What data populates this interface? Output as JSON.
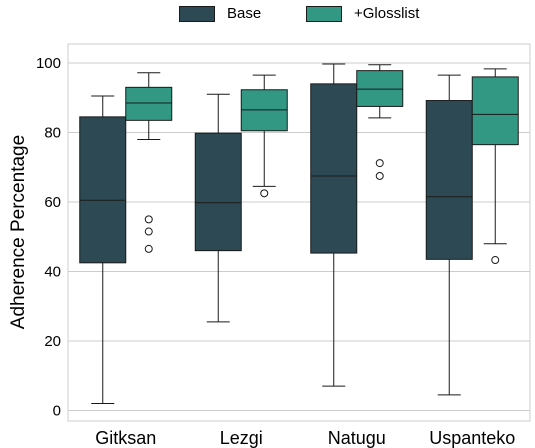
{
  "chart_data": {
    "type": "box",
    "xlabel": "",
    "ylabel": "Adherence Percentage",
    "ylim": [
      0,
      105
    ],
    "yticks": [
      0,
      20,
      40,
      60,
      80,
      100
    ],
    "grid": "horizontal",
    "legend_position": "top-center",
    "categories": [
      "Gitksan",
      "Lezgi",
      "Natugu",
      "Uspanteko"
    ],
    "series": [
      {
        "name": "Base",
        "color": "#2d4a54",
        "boxes": [
          {
            "whisker_low": 2,
            "q1": 42.5,
            "median": 60.5,
            "q3": 84.5,
            "whisker_high": 90.5,
            "outliers": []
          },
          {
            "whisker_low": 25.5,
            "q1": 46,
            "median": 59.8,
            "q3": 79.8,
            "whisker_high": 91,
            "outliers": []
          },
          {
            "whisker_low": 7,
            "q1": 45.3,
            "median": 67.5,
            "q3": 94,
            "whisker_high": 99.7,
            "outliers": []
          },
          {
            "whisker_low": 4.5,
            "q1": 43.5,
            "median": 61.5,
            "q3": 89.2,
            "whisker_high": 96.5,
            "outliers": []
          }
        ]
      },
      {
        "name": "+Glosslist",
        "color": "#329884",
        "boxes": [
          {
            "whisker_low": 78,
            "q1": 83.5,
            "median": 88.5,
            "q3": 93,
            "whisker_high": 97.2,
            "outliers": [
              55,
              51.5,
              46.5
            ]
          },
          {
            "whisker_low": 64.5,
            "q1": 80.5,
            "median": 86.5,
            "q3": 92.3,
            "whisker_high": 96.5,
            "outliers": [
              62.5
            ]
          },
          {
            "whisker_low": 84.2,
            "q1": 87.5,
            "median": 92.5,
            "q3": 97.8,
            "whisker_high": 99.5,
            "outliers": [
              71.2,
              67.5
            ]
          },
          {
            "whisker_low": 48,
            "q1": 76.5,
            "median": 85.2,
            "q3": 96,
            "whisker_high": 98.3,
            "outliers": [
              43.3
            ]
          }
        ]
      }
    ]
  }
}
